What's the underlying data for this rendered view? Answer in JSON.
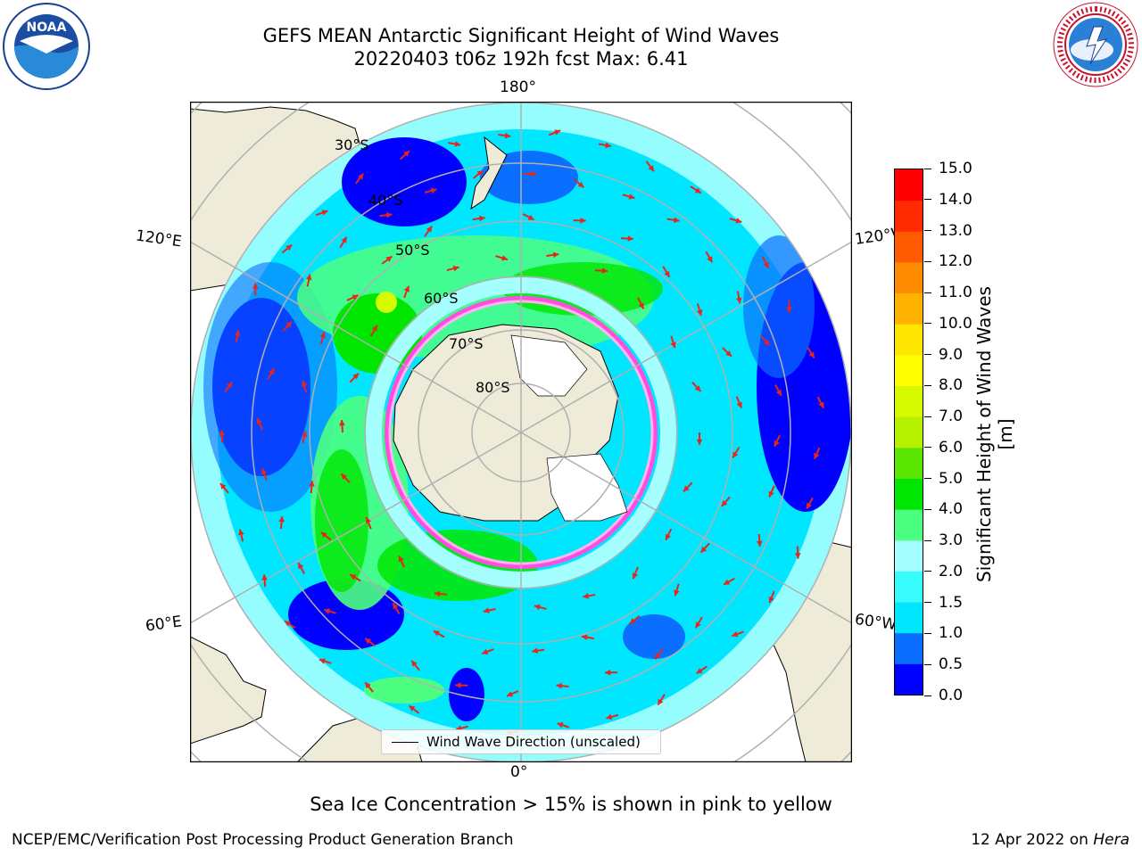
{
  "header": {
    "title_line1": "GEFS MEAN Antarctic Significant Height of Wind Waves",
    "title_line2": "20220403 t06z 192h fcst   Max: 6.41"
  },
  "map": {
    "projection": "south-polar-stereographic",
    "graticule": {
      "lat_labels": [
        "30°S",
        "40°S",
        "50°S",
        "60°S",
        "70°S",
        "80°S"
      ],
      "lon_labels": {
        "top": "180°",
        "bottom": "0°",
        "left_upper": "120°E",
        "left_lower": "60°E",
        "right_upper": "120°W",
        "right_lower": "60°W"
      }
    },
    "vector_color": "#e8251a",
    "land_color": "#eeebd9",
    "legend_label": "Wind Wave Direction (unscaled)"
  },
  "colorbar": {
    "title": "Significant Height of Wind Waves [m]",
    "levels": [
      "0.0",
      "0.5",
      "1.0",
      "1.5",
      "2.0",
      "3.0",
      "4.0",
      "5.0",
      "6.0",
      "7.0",
      "8.0",
      "9.0",
      "10.0",
      "11.0",
      "12.0",
      "13.0",
      "14.0",
      "15.0"
    ],
    "colors": [
      "#0000ff",
      "#0a6eff",
      "#00e6ff",
      "#38fcfc",
      "#a6ffff",
      "#4dff80",
      "#00e600",
      "#5ae600",
      "#b6f200",
      "#d6fa00",
      "#ffff00",
      "#ffe600",
      "#ffb300",
      "#ff8c00",
      "#ff5a00",
      "#ff2a00",
      "#ff0000"
    ]
  },
  "caption": "Sea Ice Concentration > 15% is shown in pink to yellow",
  "footer": {
    "left": "NCEP/EMC/Verification Post Processing Product Generation Branch",
    "right_date": "12 Apr 2022 on ",
    "right_machine": "Hera"
  },
  "logos": {
    "noaa_text": "NOAA",
    "nws_text": "NATIONAL WEATHER SERVICE"
  }
}
